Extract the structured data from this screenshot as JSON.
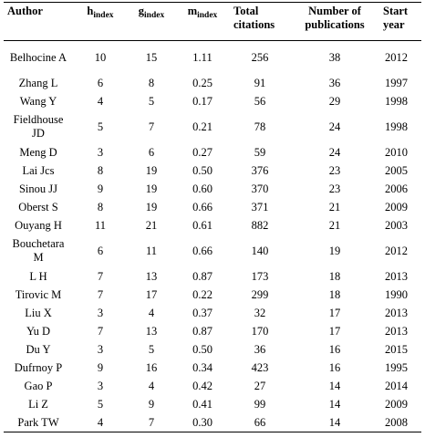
{
  "table": {
    "headers": {
      "author": "Author",
      "h_base": "h",
      "h_sub": "index",
      "g_base": "g",
      "g_sub": "index",
      "m_base": "m",
      "m_sub": "index",
      "total_citations": "Total citations",
      "num_publications": "Number of publications",
      "start_year": "Start year"
    },
    "rows": [
      {
        "author": "Belhocine A",
        "h": "10",
        "g": "15",
        "m": "1.11",
        "citations": "256",
        "publications": "38",
        "year": "2012",
        "tall": true
      },
      {
        "author": "Zhang L",
        "h": "6",
        "g": "8",
        "m": "0.25",
        "citations": "91",
        "publications": "36",
        "year": "1997"
      },
      {
        "author": "Wang Y",
        "h": "4",
        "g": "5",
        "m": "0.17",
        "citations": "56",
        "publications": "29",
        "year": "1998"
      },
      {
        "author": "Fieldhouse JD",
        "h": "5",
        "g": "7",
        "m": "0.21",
        "citations": "78",
        "publications": "24",
        "year": "1998",
        "tall": true
      },
      {
        "author": "Meng D",
        "h": "3",
        "g": "6",
        "m": "0.27",
        "citations": "59",
        "publications": "24",
        "year": "2010"
      },
      {
        "author": "Lai Jcs",
        "h": "8",
        "g": "19",
        "m": "0.50",
        "citations": "376",
        "publications": "23",
        "year": "2005"
      },
      {
        "author": "Sinou JJ",
        "h": "9",
        "g": "19",
        "m": "0.60",
        "citations": "370",
        "publications": "23",
        "year": "2006"
      },
      {
        "author": "Oberst S",
        "h": "8",
        "g": "19",
        "m": "0.66",
        "citations": "371",
        "publications": "21",
        "year": "2009"
      },
      {
        "author": "Ouyang H",
        "h": "11",
        "g": "21",
        "m": "0.61",
        "citations": "882",
        "publications": "21",
        "year": "2003"
      },
      {
        "author": "Bouchetara M",
        "h": "6",
        "g": "11",
        "m": "0.66",
        "citations": "140",
        "publications": "19",
        "year": "2012",
        "tall": true
      },
      {
        "author": "L H",
        "h": "7",
        "g": "13",
        "m": "0.87",
        "citations": "173",
        "publications": "18",
        "year": "2013"
      },
      {
        "author": "Tirovic M",
        "h": "7",
        "g": "17",
        "m": "0.22",
        "citations": "299",
        "publications": "18",
        "year": "1990"
      },
      {
        "author": "Liu X",
        "h": "3",
        "g": "4",
        "m": "0.37",
        "citations": "32",
        "publications": "17",
        "year": "2013"
      },
      {
        "author": "Yu D",
        "h": "7",
        "g": "13",
        "m": "0.87",
        "citations": "170",
        "publications": "17",
        "year": "2013"
      },
      {
        "author": "Du Y",
        "h": "3",
        "g": "5",
        "m": "0.50",
        "citations": "36",
        "publications": "16",
        "year": "2015"
      },
      {
        "author": "Dufrnoy P",
        "h": "9",
        "g": "16",
        "m": "0.34",
        "citations": "423",
        "publications": "16",
        "year": "1995"
      },
      {
        "author": "Gao P",
        "h": "3",
        "g": "4",
        "m": "0.42",
        "citations": "27",
        "publications": "14",
        "year": "2014"
      },
      {
        "author": "Li Z",
        "h": "5",
        "g": "9",
        "m": "0.41",
        "citations": "99",
        "publications": "14",
        "year": "2009"
      },
      {
        "author": "Park TW",
        "h": "4",
        "g": "7",
        "m": "0.30",
        "citations": "66",
        "publications": "14",
        "year": "2008"
      }
    ]
  }
}
